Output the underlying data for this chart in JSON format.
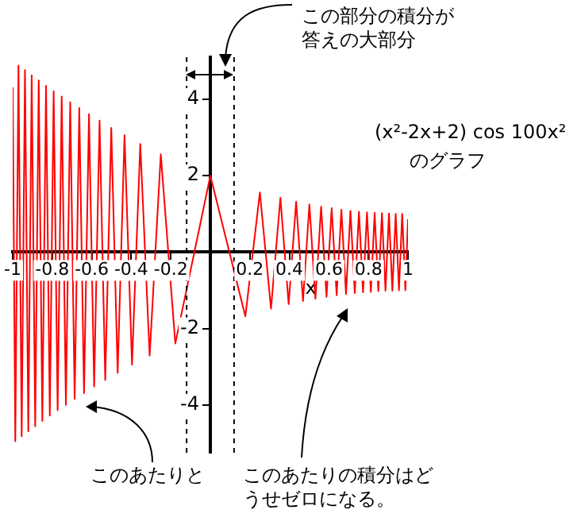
{
  "chart_data": {
    "type": "line",
    "title": "(x²-2x+2) cos 100x²",
    "subtitle": "のグラフ",
    "xlabel": "x",
    "annotations": [
      "この部分の積分が答えの大部分",
      "このあたりと",
      "このあたりの積分はどうせゼロになる。"
    ],
    "x": [
      -1,
      -0.9869,
      -0.9708,
      -0.9545,
      -0.9379,
      -0.921,
      -0.9038,
      -0.8862,
      -0.8683,
      -0.85,
      -0.8314,
      -0.8122,
      -0.7927,
      -0.7726,
      -0.752,
      -0.7308,
      -0.709,
      -0.6865,
      -0.6632,
      -0.6391,
      -0.614,
      -0.5879,
      -0.5605,
      -0.5317,
      -0.5013,
      -0.4689,
      -0.4342,
      -0.3963,
      -0.3545,
      -0.307,
      -0.2507,
      -0.1772,
      0,
      0.1772,
      0.2507,
      0.307,
      0.3545,
      0.3963,
      0.4342,
      0.4689,
      0.5013,
      0.5317,
      0.5605,
      0.5879,
      0.614,
      0.6391,
      0.6632,
      0.6865,
      0.709,
      0.7308,
      0.752,
      0.7726,
      0.7927,
      0.8122,
      0.8314,
      0.85,
      0.8683,
      0.8862,
      0.9038,
      0.921,
      0.9379,
      0.9545,
      0.9708,
      0.9869,
      1
    ],
    "series": [
      {
        "color": "#ff0000",
        "values": [
          4.31,
          -4.95,
          4.88,
          -4.82,
          4.76,
          -4.69,
          4.62,
          -4.56,
          4.49,
          -4.42,
          4.35,
          -4.28,
          4.21,
          -4.14,
          4.07,
          -4.0,
          3.92,
          -3.84,
          3.77,
          -3.69,
          3.61,
          -3.52,
          3.44,
          -3.35,
          3.25,
          -3.16,
          3.06,
          -2.95,
          2.83,
          -2.71,
          2.56,
          -2.39,
          2,
          -1.68,
          1.56,
          -1.48,
          1.42,
          -1.36,
          1.32,
          -1.28,
          1.25,
          -1.22,
          1.19,
          -1.17,
          1.15,
          -1.13,
          1.11,
          -1.1,
          1.08,
          -1.07,
          1.06,
          -1.05,
          1.04,
          -1.04,
          1.03,
          -1.02,
          1.02,
          -1.01,
          1.01,
          -1.01,
          1.0,
          -1.0,
          1.0,
          -1.0,
          0.86
        ]
      }
    ],
    "xlim": [
      -1,
      1
    ],
    "ylim": [
      -5.25,
      5.1
    ],
    "xticks": [
      -1,
      -0.8,
      -0.6,
      -0.4,
      -0.2,
      0.2,
      0.4,
      0.6,
      0.8,
      1
    ],
    "yticks": [
      -4,
      -2,
      2,
      4
    ],
    "ref_lines": [
      {
        "axis": "x",
        "value": -0.12,
        "color": "#000000",
        "line_style": "dashed"
      },
      {
        "axis": "x",
        "value": 0.12,
        "color": "#000000",
        "line_style": "dashed"
      }
    ],
    "grid": false,
    "legend": false,
    "marker": "none",
    "line_style": "solid"
  }
}
